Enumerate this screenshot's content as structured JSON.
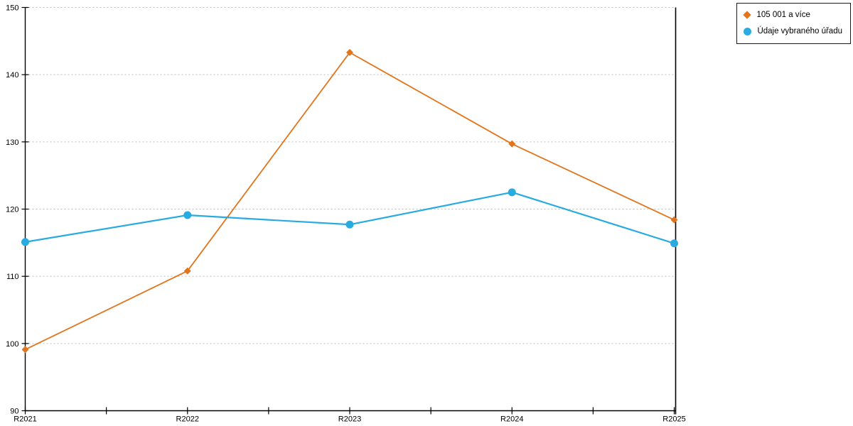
{
  "chart_data": {
    "type": "line",
    "title": "",
    "xlabel": "",
    "ylabel": "",
    "categories": [
      "R2021",
      "R2022",
      "R2023",
      "R2024",
      "R2025"
    ],
    "series": [
      {
        "name": "105 001 a více",
        "marker": "diamond",
        "color": "#e2751c",
        "line_width": 1.8,
        "values": [
          99.1,
          110.8,
          143.3,
          129.7,
          118.4
        ]
      },
      {
        "name": "Údaje vybraného úřadu",
        "marker": "circle",
        "color": "#29abe2",
        "line_width": 2.2,
        "values": [
          115.1,
          119.1,
          117.7,
          122.5,
          114.9
        ]
      }
    ],
    "ylim": [
      90,
      150
    ],
    "y_ticks": [
      90,
      100,
      110,
      120,
      130,
      140,
      150
    ],
    "grid": "horizontal-dashed",
    "legend_position": "top-right"
  },
  "colors": {
    "axis": "#000000",
    "gridline": "#bdbdbd",
    "background": "#ffffff",
    "legend_border": "#1a1a1a",
    "text": "#000000"
  }
}
